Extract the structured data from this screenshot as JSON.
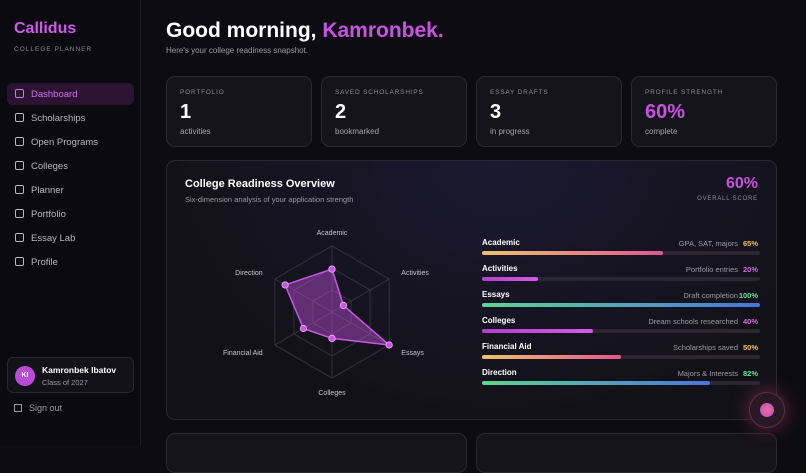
{
  "sidebar": {
    "brand": "Callidus",
    "tagline": "COLLEGE PLANNER",
    "nav": [
      "Dashboard",
      "Scholarships",
      "Open Programs",
      "Colleges",
      "Planner",
      "Portfolio",
      "Essay Lab",
      "Profile"
    ],
    "active": 0,
    "user": {
      "initials": "KI",
      "name": "Kamronbek Ibatov",
      "class": "Class of 2027"
    },
    "signout": "Sign out"
  },
  "header": {
    "greeting": "Good morning,",
    "name": "Kamronbek.",
    "subtitle": "Here's your college readiness snapshot."
  },
  "stats": [
    {
      "label": "PORTFOLIO",
      "value": 1,
      "unit": "activities"
    },
    {
      "label": "SAVED SCHOLARSHIPS",
      "value": 2,
      "unit": "bookmarked"
    },
    {
      "label": "ESSAY DRAFTS",
      "value": 3,
      "unit": "in progress"
    },
    {
      "label": "PROFILE STRENGTH",
      "value": "60%",
      "unit": "complete",
      "accent": true
    }
  ],
  "overview": {
    "title": "College Readiness Overview",
    "subtitle": "Six-dimension analysis of your application strength",
    "score": "60%",
    "score_label": "OVERALL SCORE",
    "scale_max": 100,
    "dimensions": [
      {
        "name": "Academic",
        "detail": "GPA, SAT, majors",
        "value": 65,
        "label": "65%",
        "from": "#f1c26c",
        "to": "#e2568e",
        "text_color": "#f4c06a"
      },
      {
        "name": "Activities",
        "detail": "Portfolio entries",
        "value": 20,
        "label": "20%",
        "from": "#b23fd0",
        "to": "#d65ae6",
        "text_color": "#d36ee0"
      },
      {
        "name": "Essays",
        "detail": "Draft completion",
        "value": 100,
        "label": "100%",
        "from": "#5fd58f",
        "to": "#4a73e0",
        "text_color": "#6fe0a0"
      },
      {
        "name": "Colleges",
        "detail": "Dream schools researched",
        "value": 40,
        "label": "40%",
        "from": "#b23fd0",
        "to": "#d65ae6",
        "text_color": "#d36ee0"
      },
      {
        "name": "Financial Aid",
        "detail": "Scholarships saved",
        "value": 50,
        "label": "50%",
        "from": "#f1c26c",
        "to": "#e2568e",
        "text_color": "#f4c06a"
      },
      {
        "name": "Direction",
        "detail": "Majors & Interests",
        "value": 82,
        "label": "82%",
        "from": "#5fd58f",
        "to": "#4a73e0",
        "text_color": "#6fe0a0"
      }
    ]
  }
}
